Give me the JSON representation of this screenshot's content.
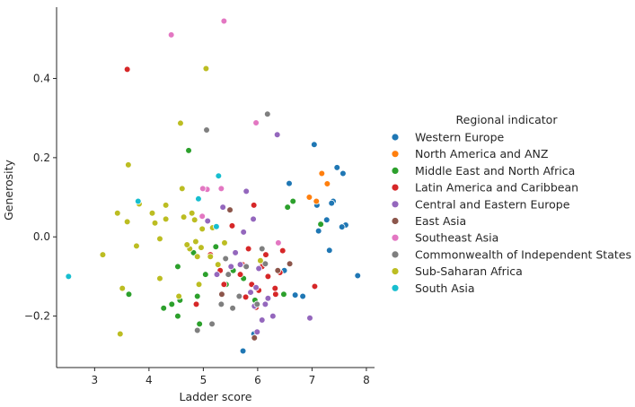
{
  "chart_data": {
    "type": "scatter",
    "xlabel": "Ladder score",
    "ylabel": "Generosity",
    "xlim": [
      2.3,
      8.15
    ],
    "ylim": [
      -0.33,
      0.58
    ],
    "xticks": [
      3,
      4,
      5,
      6,
      7,
      8
    ],
    "yticks": [
      -0.2,
      0.0,
      0.2,
      0.4
    ],
    "ytick_labels": [
      "−0.2",
      "0.0",
      "0.2",
      "0.4"
    ],
    "grid": false,
    "legend_title": "Regional indicator",
    "legend_placement": "outside-right",
    "series": [
      {
        "name": "Western Europe",
        "color": "#1f77b4",
        "points": [
          [
            7.84,
            -0.098
          ],
          [
            7.62,
            0.03
          ],
          [
            7.57,
            0.16
          ],
          [
            7.55,
            0.025
          ],
          [
            7.46,
            0.175
          ],
          [
            7.39,
            0.09
          ],
          [
            7.36,
            0.085
          ],
          [
            7.32,
            -0.034
          ],
          [
            7.27,
            0.043
          ],
          [
            7.12,
            0.015
          ],
          [
            7.09,
            0.08
          ],
          [
            7.04,
            0.233
          ],
          [
            6.83,
            -0.15
          ],
          [
            6.69,
            -0.147
          ],
          [
            6.49,
            -0.085
          ],
          [
            6.58,
            0.135
          ],
          [
            5.93,
            -0.245
          ],
          [
            5.73,
            -0.288
          ]
        ]
      },
      {
        "name": "North America and ANZ",
        "color": "#ff7f0e",
        "points": [
          [
            7.28,
            0.134
          ],
          [
            7.18,
            0.16
          ],
          [
            7.08,
            0.09
          ],
          [
            6.95,
            0.1
          ]
        ]
      },
      {
        "name": "Middle East and North Africa",
        "color": "#2ca02c",
        "points": [
          [
            7.16,
            0.032
          ],
          [
            6.65,
            0.09
          ],
          [
            6.55,
            0.075
          ],
          [
            6.48,
            -0.145
          ],
          [
            5.95,
            -0.16
          ],
          [
            5.74,
            -0.105
          ],
          [
            5.55,
            -0.085
          ],
          [
            5.42,
            -0.12
          ],
          [
            5.23,
            -0.025
          ],
          [
            5.04,
            -0.095
          ],
          [
            4.93,
            -0.22
          ],
          [
            4.89,
            -0.15
          ],
          [
            4.82,
            -0.04
          ],
          [
            4.73,
            0.218
          ],
          [
            4.57,
            -0.16
          ],
          [
            4.53,
            -0.075
          ],
          [
            4.53,
            -0.2
          ],
          [
            4.42,
            -0.17
          ],
          [
            4.27,
            -0.18
          ],
          [
            3.63,
            -0.145
          ]
        ]
      },
      {
        "name": "Latin America and Caribbean",
        "color": "#d62728",
        "points": [
          [
            7.05,
            -0.125
          ],
          [
            6.46,
            -0.035
          ],
          [
            6.41,
            -0.09
          ],
          [
            6.33,
            -0.145
          ],
          [
            6.32,
            -0.13
          ],
          [
            6.19,
            -0.1
          ],
          [
            6.15,
            -0.045
          ],
          [
            6.08,
            -0.075
          ],
          [
            6.02,
            -0.135
          ],
          [
            5.97,
            -0.178
          ],
          [
            5.93,
            0.08
          ],
          [
            5.89,
            -0.12
          ],
          [
            5.83,
            -0.03
          ],
          [
            5.78,
            -0.152
          ],
          [
            5.72,
            -0.07
          ],
          [
            5.68,
            -0.095
          ],
          [
            5.53,
            0.028
          ],
          [
            5.38,
            -0.12
          ],
          [
            5.31,
            -0.085
          ],
          [
            5.13,
            -0.045
          ],
          [
            4.87,
            -0.17
          ],
          [
            3.6,
            0.423
          ]
        ]
      },
      {
        "name": "Central and Eastern Europe",
        "color": "#9467bd",
        "points": [
          [
            6.96,
            -0.205
          ],
          [
            6.36,
            0.258
          ],
          [
            6.28,
            -0.2
          ],
          [
            6.19,
            -0.155
          ],
          [
            6.14,
            -0.17
          ],
          [
            6.08,
            -0.21
          ],
          [
            6.02,
            -0.08
          ],
          [
            5.99,
            -0.24
          ],
          [
            5.97,
            -0.128
          ],
          [
            5.94,
            -0.175
          ],
          [
            5.92,
            0.045
          ],
          [
            5.87,
            -0.14
          ],
          [
            5.79,
            0.115
          ],
          [
            5.74,
            0.012
          ],
          [
            5.68,
            -0.07
          ],
          [
            5.59,
            -0.04
          ],
          [
            5.51,
            -0.075
          ],
          [
            5.36,
            0.075
          ],
          [
            5.25,
            -0.095
          ],
          [
            5.08,
            0.04
          ],
          [
            5.06,
            0.12
          ]
        ]
      },
      {
        "name": "East Asia",
        "color": "#8c564b",
        "points": [
          [
            6.59,
            -0.068
          ],
          [
            6.37,
            -0.085
          ],
          [
            5.94,
            -0.255
          ],
          [
            5.49,
            0.068
          ],
          [
            5.34,
            -0.145
          ]
        ]
      },
      {
        "name": "Southeast Asia",
        "color": "#e377c2",
        "points": [
          [
            6.38,
            -0.015
          ],
          [
            5.97,
            0.288
          ],
          [
            5.38,
            0.545
          ],
          [
            5.33,
            0.122
          ],
          [
            5.07,
            0.12
          ],
          [
            4.98,
            0.052
          ],
          [
            4.99,
            0.122
          ],
          [
            4.41,
            0.51
          ]
        ]
      },
      {
        "name": "Commonwealth of Independent States",
        "color": "#7f7f7f",
        "points": [
          [
            6.18,
            0.31
          ],
          [
            6.14,
            -0.068
          ],
          [
            6.08,
            -0.03
          ],
          [
            5.99,
            -0.17
          ],
          [
            5.79,
            -0.075
          ],
          [
            5.66,
            -0.15
          ],
          [
            5.54,
            -0.18
          ],
          [
            5.46,
            -0.095
          ],
          [
            5.41,
            -0.055
          ],
          [
            5.33,
            -0.17
          ],
          [
            5.16,
            -0.22
          ],
          [
            5.06,
            0.27
          ],
          [
            4.89,
            -0.236
          ]
        ]
      },
      {
        "name": "Sub-Saharan Africa",
        "color": "#bcbd22",
        "points": [
          [
            6.05,
            -0.06
          ],
          [
            5.39,
            -0.015
          ],
          [
            5.27,
            -0.07
          ],
          [
            5.17,
            0.023
          ],
          [
            5.13,
            -0.05
          ],
          [
            5.05,
            0.425
          ],
          [
            4.98,
            0.02
          ],
          [
            4.96,
            -0.027
          ],
          [
            4.92,
            -0.12
          ],
          [
            4.89,
            -0.05
          ],
          [
            4.86,
            -0.012
          ],
          [
            4.84,
            0.043
          ],
          [
            4.79,
            0.06
          ],
          [
            4.75,
            -0.03
          ],
          [
            4.7,
            -0.02
          ],
          [
            4.64,
            0.05
          ],
          [
            4.61,
            0.122
          ],
          [
            4.58,
            0.287
          ],
          [
            4.55,
            -0.15
          ],
          [
            4.31,
            0.045
          ],
          [
            4.31,
            0.08
          ],
          [
            4.2,
            -0.005
          ],
          [
            4.2,
            -0.105
          ],
          [
            4.11,
            0.035
          ],
          [
            4.06,
            0.06
          ],
          [
            3.82,
            0.083
          ],
          [
            3.77,
            -0.023
          ],
          [
            3.62,
            0.182
          ],
          [
            3.6,
            0.038
          ],
          [
            3.51,
            -0.13
          ],
          [
            3.47,
            -0.245
          ],
          [
            3.42,
            0.06
          ],
          [
            3.15,
            -0.045
          ]
        ]
      },
      {
        "name": "South Asia",
        "color": "#17becf",
        "points": [
          [
            5.28,
            0.154
          ],
          [
            5.24,
            0.026
          ],
          [
            4.91,
            0.096
          ],
          [
            3.8,
            0.09
          ],
          [
            2.52,
            -0.1
          ]
        ]
      }
    ]
  }
}
